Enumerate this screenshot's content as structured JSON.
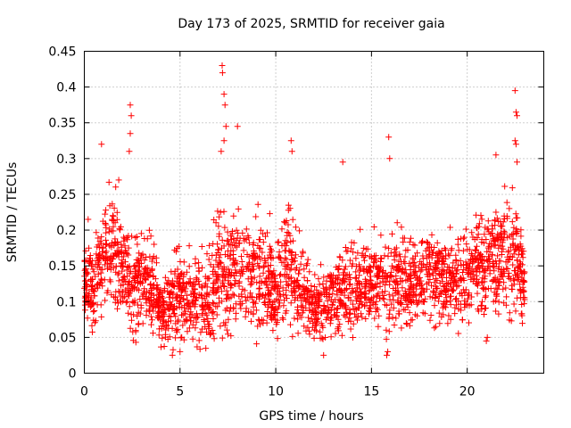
{
  "chart_data": {
    "type": "scatter",
    "title": "Day 173 of 2025, SRMTID for receiver gaia",
    "xlabel": "GPS time / hours",
    "ylabel": "SRMTID / TECUs",
    "xlim": [
      0,
      24
    ],
    "ylim": [
      0,
      0.45
    ],
    "xticks": [
      0,
      5,
      10,
      15,
      20
    ],
    "xtick_labels": [
      "0",
      "5",
      "10",
      "15",
      "20"
    ],
    "yticks": [
      0,
      0.05,
      0.1,
      0.15,
      0.2,
      0.25,
      0.3,
      0.35,
      0.4,
      0.45
    ],
    "ytick_labels": [
      "0",
      "0.05",
      "0.1",
      "0.15",
      "0.2",
      "0.25",
      "0.3",
      "0.35",
      "0.4",
      "0.45"
    ],
    "grid": true,
    "marker": "+",
    "marker_color": "#ff0000",
    "data_range_hours": [
      0,
      23
    ],
    "profile": {
      "x": [
        0,
        0.5,
        1,
        1.5,
        2,
        2.5,
        3,
        3.5,
        4,
        4.5,
        5,
        5.5,
        6,
        6.5,
        7,
        7.5,
        8,
        8.5,
        9,
        9.5,
        10,
        10.5,
        11,
        11.5,
        12,
        12.5,
        13,
        13.5,
        14,
        14.5,
        15,
        15.5,
        16,
        16.5,
        17,
        17.5,
        18,
        18.5,
        19,
        19.5,
        20,
        20.5,
        21,
        21.5,
        22,
        22.5,
        23
      ],
      "center": [
        0.13,
        0.12,
        0.16,
        0.18,
        0.15,
        0.12,
        0.14,
        0.13,
        0.08,
        0.1,
        0.11,
        0.1,
        0.1,
        0.11,
        0.14,
        0.13,
        0.15,
        0.14,
        0.13,
        0.14,
        0.1,
        0.16,
        0.14,
        0.11,
        0.09,
        0.09,
        0.1,
        0.11,
        0.12,
        0.12,
        0.13,
        0.13,
        0.12,
        0.14,
        0.12,
        0.13,
        0.14,
        0.14,
        0.12,
        0.13,
        0.14,
        0.15,
        0.15,
        0.16,
        0.17,
        0.16,
        0.13
      ],
      "spread": [
        0.04,
        0.05,
        0.07,
        0.07,
        0.06,
        0.06,
        0.06,
        0.05,
        0.04,
        0.05,
        0.05,
        0.05,
        0.05,
        0.06,
        0.08,
        0.07,
        0.07,
        0.06,
        0.06,
        0.06,
        0.05,
        0.08,
        0.07,
        0.05,
        0.04,
        0.04,
        0.04,
        0.05,
        0.05,
        0.05,
        0.05,
        0.05,
        0.06,
        0.06,
        0.05,
        0.05,
        0.06,
        0.05,
        0.05,
        0.05,
        0.06,
        0.06,
        0.06,
        0.06,
        0.07,
        0.07,
        0.05
      ]
    },
    "notable_points": [
      {
        "x": 0.9,
        "y": 0.32
      },
      {
        "x": 1.8,
        "y": 0.27
      },
      {
        "x": 2.4,
        "y": 0.375
      },
      {
        "x": 2.45,
        "y": 0.36
      },
      {
        "x": 2.4,
        "y": 0.335
      },
      {
        "x": 2.35,
        "y": 0.31
      },
      {
        "x": 7.2,
        "y": 0.43
      },
      {
        "x": 7.22,
        "y": 0.42
      },
      {
        "x": 7.3,
        "y": 0.39
      },
      {
        "x": 7.35,
        "y": 0.375
      },
      {
        "x": 7.4,
        "y": 0.345
      },
      {
        "x": 7.3,
        "y": 0.325
      },
      {
        "x": 7.15,
        "y": 0.31
      },
      {
        "x": 8.0,
        "y": 0.345
      },
      {
        "x": 10.8,
        "y": 0.325
      },
      {
        "x": 10.85,
        "y": 0.31
      },
      {
        "x": 13.5,
        "y": 0.295
      },
      {
        "x": 15.9,
        "y": 0.33
      },
      {
        "x": 15.95,
        "y": 0.3
      },
      {
        "x": 21.5,
        "y": 0.305
      },
      {
        "x": 22.5,
        "y": 0.395
      },
      {
        "x": 22.55,
        "y": 0.365
      },
      {
        "x": 22.6,
        "y": 0.36
      },
      {
        "x": 22.5,
        "y": 0.325
      },
      {
        "x": 22.55,
        "y": 0.32
      },
      {
        "x": 22.6,
        "y": 0.295
      },
      {
        "x": 4.6,
        "y": 0.025
      },
      {
        "x": 5.0,
        "y": 0.03
      },
      {
        "x": 15.8,
        "y": 0.025
      },
      {
        "x": 15.85,
        "y": 0.03
      },
      {
        "x": 12.5,
        "y": 0.025
      },
      {
        "x": 0.2,
        "y": 0.215
      },
      {
        "x": 21.0,
        "y": 0.045
      },
      {
        "x": 21.05,
        "y": 0.05
      }
    ],
    "sample_count": 2600,
    "seed": 173
  }
}
